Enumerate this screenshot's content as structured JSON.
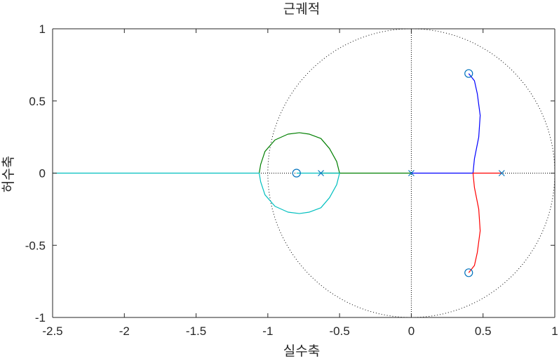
{
  "chart_data": {
    "type": "root-locus",
    "title": "근궤적",
    "xlabel": "실수축",
    "ylabel": "허수축",
    "xlim": [
      -2.5,
      1
    ],
    "ylim": [
      -1,
      1
    ],
    "xticks": [
      -2.5,
      -2,
      -1.5,
      -1,
      -0.5,
      0,
      0.5,
      1
    ],
    "xtick_labels": [
      "-2.5",
      "-2",
      "-1.5",
      "-1",
      "-0.5",
      "0",
      "0.5",
      "1"
    ],
    "yticks": [
      1,
      0.5,
      0,
      -0.5,
      -1
    ],
    "ytick_labels": [
      "1",
      "0.5",
      "0",
      "-0.5",
      "-1"
    ],
    "grid": false,
    "unit_circle": true,
    "poles": [
      {
        "x": -0.63,
        "y": 0
      },
      {
        "x": 0.0,
        "y": 0
      },
      {
        "x": 0.63,
        "y": 0
      }
    ],
    "zeros": [
      {
        "x": -0.8,
        "y": 0
      },
      {
        "x": 0.4,
        "y": 0.69
      },
      {
        "x": 0.4,
        "y": -0.69
      }
    ],
    "series": [
      {
        "color": "#0000ff",
        "points": [
          [
            0.0,
            0
          ],
          [
            0.2,
            0
          ],
          [
            0.43,
            0
          ],
          [
            0.44,
            0.1
          ],
          [
            0.47,
            0.25
          ],
          [
            0.48,
            0.4
          ],
          [
            0.46,
            0.55
          ],
          [
            0.44,
            0.64
          ],
          [
            0.4,
            0.69
          ]
        ]
      },
      {
        "color": "#ff0000",
        "points": [
          [
            0.63,
            0
          ],
          [
            0.55,
            0
          ],
          [
            0.43,
            0
          ],
          [
            0.44,
            -0.1
          ],
          [
            0.47,
            -0.25
          ],
          [
            0.48,
            -0.4
          ],
          [
            0.46,
            -0.55
          ],
          [
            0.44,
            -0.64
          ],
          [
            0.4,
            -0.69
          ]
        ]
      },
      {
        "color": "#007f00",
        "points": [
          [
            0.0,
            0
          ],
          [
            -0.3,
            0
          ],
          [
            -0.63,
            0
          ],
          [
            -0.5,
            0
          ],
          [
            -0.52,
            0.08
          ],
          [
            -0.57,
            0.17
          ],
          [
            -0.63,
            0.24
          ],
          [
            -0.71,
            0.27
          ],
          [
            -0.78,
            0.28
          ],
          [
            -0.86,
            0.27
          ],
          [
            -0.95,
            0.23
          ],
          [
            -1.02,
            0.15
          ],
          [
            -1.05,
            0.06
          ],
          [
            -1.06,
            0
          ]
        ]
      },
      {
        "color": "#00bfbf",
        "points": [
          [
            -0.8,
            0
          ],
          [
            -0.63,
            0
          ],
          [
            -0.5,
            0
          ],
          [
            -0.52,
            -0.08
          ],
          [
            -0.57,
            -0.17
          ],
          [
            -0.63,
            -0.24
          ],
          [
            -0.71,
            -0.27
          ],
          [
            -0.78,
            -0.28
          ],
          [
            -0.86,
            -0.27
          ],
          [
            -0.95,
            -0.23
          ],
          [
            -1.02,
            -0.15
          ],
          [
            -1.05,
            -0.06
          ],
          [
            -1.06,
            0
          ],
          [
            -1.5,
            0
          ],
          [
            -2.0,
            0
          ],
          [
            -2.5,
            0
          ]
        ]
      }
    ],
    "colors": {
      "axes": "#262626",
      "marker": "#0072bd",
      "unit_circle": "#000000"
    }
  }
}
